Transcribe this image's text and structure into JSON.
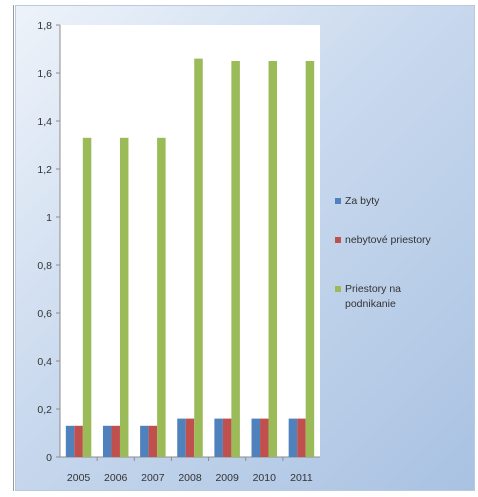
{
  "chart_data": {
    "type": "bar",
    "title": "",
    "xlabel": "",
    "ylabel": "",
    "categories": [
      "2005",
      "2006",
      "2007",
      "2008",
      "2009",
      "2010",
      "2011"
    ],
    "series": [
      {
        "name": "Za byty",
        "color": "#4f81bd",
        "values": [
          0.13,
          0.13,
          0.13,
          0.16,
          0.16,
          0.16,
          0.16
        ]
      },
      {
        "name": "nebytové priestory",
        "color": "#c0504d",
        "values": [
          0.13,
          0.13,
          0.13,
          0.16,
          0.16,
          0.16,
          0.16
        ]
      },
      {
        "name": "Priestory na podnikanie",
        "color": "#9bbb59",
        "values": [
          1.33,
          1.33,
          1.33,
          1.66,
          1.65,
          1.65,
          1.65
        ]
      }
    ],
    "yticks": [
      "0",
      "0,2",
      "0,4",
      "0,6",
      "0,8",
      "1",
      "1,2",
      "1,4",
      "1,6",
      "1,8"
    ],
    "ylim": [
      0,
      1.8
    ],
    "grid": false,
    "legend_position": "right"
  }
}
